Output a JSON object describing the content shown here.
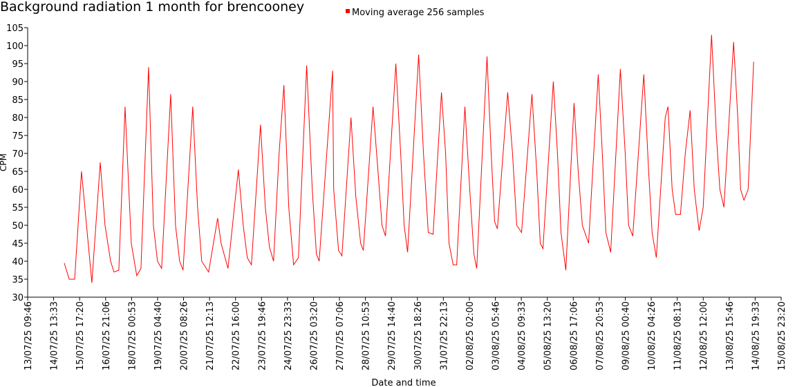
{
  "chart_data": {
    "type": "line",
    "title": "Background radiation 1 month for brencooney",
    "y_label": "CPM",
    "x_label": "Date and time",
    "legend": "top",
    "grid": false,
    "ylim": [
      30,
      105
    ],
    "yticks": [
      30,
      35,
      40,
      45,
      50,
      55,
      60,
      65,
      70,
      75,
      80,
      85,
      90,
      95,
      100,
      105
    ],
    "xlim": [
      "2025-07-13 09:46",
      "2025-08-15 23:20"
    ],
    "xticks": [
      {
        "value": "2025-07-13 09:46",
        "label": "13/07/25 09:46"
      },
      {
        "value": "2025-07-14 13:33",
        "label": "14/07/25 13:33"
      },
      {
        "value": "2025-07-15 17:20",
        "label": "15/07/25 17:20"
      },
      {
        "value": "2025-07-16 21:06",
        "label": "16/07/25 21:06"
      },
      {
        "value": "2025-07-18 00:53",
        "label": "18/07/25 00:53"
      },
      {
        "value": "2025-07-19 04:40",
        "label": "19/07/25 04:40"
      },
      {
        "value": "2025-07-20 08:26",
        "label": "20/07/25 08:26"
      },
      {
        "value": "2025-07-21 12:13",
        "label": "21/07/25 12:13"
      },
      {
        "value": "2025-07-22 16:00",
        "label": "22/07/25 16:00"
      },
      {
        "value": "2025-07-23 19:46",
        "label": "23/07/25 19:46"
      },
      {
        "value": "2025-07-24 23:33",
        "label": "24/07/25 23:33"
      },
      {
        "value": "2025-07-26 03:20",
        "label": "26/07/25 03:20"
      },
      {
        "value": "2025-07-27 07:06",
        "label": "27/07/25 07:06"
      },
      {
        "value": "2025-07-28 10:53",
        "label": "28/07/25 10:53"
      },
      {
        "value": "2025-07-29 14:40",
        "label": "29/07/25 14:40"
      },
      {
        "value": "2025-07-30 18:26",
        "label": "30/07/25 18:26"
      },
      {
        "value": "2025-07-31 22:13",
        "label": "31/07/25 22:13"
      },
      {
        "value": "2025-08-02 02:00",
        "label": "02/08/25 02:00"
      },
      {
        "value": "2025-08-03 05:46",
        "label": "03/08/25 05:46"
      },
      {
        "value": "2025-08-04 09:33",
        "label": "04/08/25 09:33"
      },
      {
        "value": "2025-08-05 13:20",
        "label": "05/08/25 13:20"
      },
      {
        "value": "2025-08-06 17:06",
        "label": "06/08/25 17:06"
      },
      {
        "value": "2025-08-07 20:53",
        "label": "07/08/25 20:53"
      },
      {
        "value": "2025-08-09 00:40",
        "label": "09/08/25 00:40"
      },
      {
        "value": "2025-08-10 04:26",
        "label": "10/08/25 04:26"
      },
      {
        "value": "2025-08-11 08:13",
        "label": "11/08/25 08:13"
      },
      {
        "value": "2025-08-12 12:00",
        "label": "12/08/25 12:00"
      },
      {
        "value": "2025-08-13 15:46",
        "label": "13/08/25 15:46"
      },
      {
        "value": "2025-08-14 19:33",
        "label": "14/08/25 19:33"
      },
      {
        "value": "2025-08-15 23:20",
        "label": "15/08/25 23:20"
      }
    ],
    "x": [
      "2025-07-15 00:55",
      "2025-07-15 06:05",
      "2025-07-15 12:00",
      "2025-07-15 19:20",
      "2025-07-16 06:25",
      "2025-07-16 15:20",
      "2025-07-16 20:30",
      "2025-07-17 02:25",
      "2025-07-17 06:05",
      "2025-07-17 11:15",
      "2025-07-17 17:55",
      "2025-07-18 00:35",
      "2025-07-18 06:25",
      "2025-07-18 10:55",
      "2025-07-18 19:00",
      "2025-07-19 00:10",
      "2025-07-19 04:35",
      "2025-07-19 09:00",
      "2025-07-19 18:40",
      "2025-07-19 23:50",
      "2025-07-20 04:15",
      "2025-07-20 07:55",
      "2025-07-20 18:15",
      "2025-07-20 23:25",
      "2025-07-21 03:50",
      "2025-07-21 11:15",
      "2025-07-21 20:50",
      "2025-07-22 00:35",
      "2025-07-22 07:55",
      "2025-07-22 19:00",
      "2025-07-23 00:10",
      "2025-07-23 04:35",
      "2025-07-23 09:00",
      "2025-07-23 18:40",
      "2025-07-23 23:50",
      "2025-07-24 04:15",
      "2025-07-24 08:40",
      "2025-07-24 14:35",
      "2025-07-24 19:45",
      "2025-07-25 00:55",
      "2025-07-25 06:05",
      "2025-07-25 11:15",
      "2025-07-25 20:05",
      "2025-07-26 02:00",
      "2025-07-26 06:30",
      "2025-07-26 09:25",
      "2025-07-26 23:45",
      "2025-07-27 00:55",
      "2025-07-27 06:05",
      "2025-07-27 09:45",
      "2025-07-27 19:25",
      "2025-07-28 00:35",
      "2025-07-28 05:45",
      "2025-07-28 08:40",
      "2025-07-28 19:00",
      "2025-07-29 00:55",
      "2025-07-29 04:35",
      "2025-07-29 08:20",
      "2025-07-29 19:25",
      "2025-07-30 00:35",
      "2025-07-30 04:15",
      "2025-07-30 07:55",
      "2025-07-30 19:45",
      "2025-07-31 00:55",
      "2025-07-31 06:05",
      "2025-07-31 11:15",
      "2025-07-31 20:10",
      "2025-08-01 00:35",
      "2025-08-01 04:15",
      "2025-08-01 08:40",
      "2025-08-01 12:25",
      "2025-08-01 21:15",
      "2025-08-02 02:25",
      "2025-08-02 06:50",
      "2025-08-02 09:50",
      "2025-08-02 20:50",
      "2025-08-03 01:20",
      "2025-08-03 05:00",
      "2025-08-03 07:55",
      "2025-08-03 19:00",
      "2025-08-04 00:10",
      "2025-08-04 04:40",
      "2025-08-04 09:50",
      "2025-08-04 20:55",
      "2025-08-05 02:00",
      "2025-08-05 05:45",
      "2025-08-05 08:40",
      "2025-08-05 19:45",
      "2025-08-06 00:10",
      "2025-08-06 03:55",
      "2025-08-06 09:05",
      "2025-08-06 17:55",
      "2025-08-06 22:20",
      "2025-08-07 02:45",
      "2025-08-07 09:25",
      "2025-08-07 19:45",
      "2025-08-08 00:10",
      "2025-08-08 03:55",
      "2025-08-08 09:05",
      "2025-08-08 19:25",
      "2025-08-09 00:35",
      "2025-08-09 04:15",
      "2025-08-09 08:40",
      "2025-08-09 20:30",
      "2025-08-10 01:40",
      "2025-08-10 05:20",
      "2025-08-10 09:50",
      "2025-08-10 19:25",
      "2025-08-10 22:20",
      "2025-08-11 02:45",
      "2025-08-11 06:30",
      "2025-08-11 11:40",
      "2025-08-11 16:50",
      "2025-08-11 22:00",
      "2025-08-12 02:25",
      "2025-08-12 07:35",
      "2025-08-12 12:00",
      "2025-08-12 20:55",
      "2025-08-13 02:05",
      "2025-08-13 05:45",
      "2025-08-13 10:10",
      "2025-08-13 20:30",
      "2025-08-14 00:55",
      "2025-08-14 03:55",
      "2025-08-14 07:35",
      "2025-08-14 12:00",
      "2025-08-14 17:55"
    ],
    "series": [
      {
        "name": "Moving average 256 samples",
        "color": "#ff0000",
        "values": [
          39.5,
          35,
          35,
          65,
          34,
          67.5,
          50,
          40,
          37,
          37.5,
          83,
          45,
          36,
          38,
          94,
          50,
          40,
          38,
          86.5,
          50,
          40,
          37.5,
          83,
          55,
          40,
          37,
          52,
          45,
          38,
          65.5,
          50,
          41,
          39,
          78,
          55,
          44,
          40,
          70,
          89,
          55,
          39,
          41,
          94.5,
          60,
          42,
          40,
          93,
          60,
          43,
          41.5,
          80,
          58,
          45,
          43,
          83,
          63,
          50,
          47,
          95,
          70,
          50,
          42.5,
          97.5,
          70,
          48,
          47.5,
          87,
          70,
          45,
          39,
          39,
          83,
          60,
          42,
          38,
          97,
          70,
          51,
          49,
          87,
          70,
          50,
          48,
          86.5,
          65,
          45,
          43.5,
          90,
          70,
          48,
          37.5,
          84,
          65,
          50,
          45,
          92,
          70,
          48,
          42.5,
          93.5,
          70,
          50,
          47,
          92,
          65,
          48,
          41,
          80,
          83,
          60,
          53,
          53,
          70,
          82,
          60,
          48.5,
          55,
          103,
          75,
          60,
          55,
          101,
          80,
          60,
          57,
          60,
          95.5
        ]
      }
    ]
  }
}
